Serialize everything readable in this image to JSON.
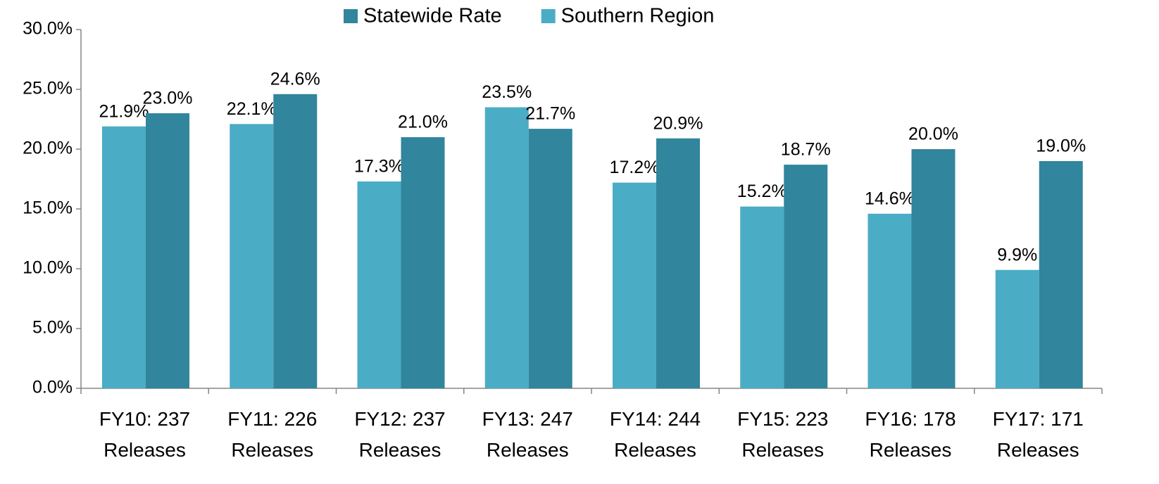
{
  "chart_data": {
    "type": "bar",
    "categories": [
      "FY10: 237 Releases",
      "FY11: 226 Releases",
      "FY12: 237 Releases",
      "FY13: 247 Releases",
      "FY14: 244 Releases",
      "FY15: 223 Releases",
      "FY16: 178 Releases",
      "FY17: 171 Releases"
    ],
    "series": [
      {
        "name": "Southern Region",
        "color": "#4bacc6",
        "values": [
          21.9,
          22.1,
          17.3,
          23.5,
          17.2,
          15.2,
          14.6,
          9.9
        ],
        "value_labels": [
          "21.9%",
          "22.1%",
          "17.3%",
          "23.5%",
          "17.2%",
          "15.2%",
          "14.6%",
          "9.9%"
        ]
      },
      {
        "name": "Statewide Rate",
        "color": "#31859c",
        "values": [
          23.0,
          24.6,
          21.0,
          21.7,
          20.9,
          18.7,
          20.0,
          19.0
        ],
        "value_labels": [
          "23.0%",
          "24.6%",
          "21.0%",
          "21.7%",
          "20.9%",
          "18.7%",
          "20.0%",
          "19.0%"
        ]
      }
    ],
    "ylim": [
      0,
      30
    ],
    "yticks": [
      {
        "value": 0,
        "label": "0.0%"
      },
      {
        "value": 5,
        "label": "5.0%"
      },
      {
        "value": 10,
        "label": "10.0%"
      },
      {
        "value": 15,
        "label": "15.0%"
      },
      {
        "value": 20,
        "label": "20.0%"
      },
      {
        "value": 25,
        "label": "25.0%"
      },
      {
        "value": 30,
        "label": "30.0%"
      }
    ],
    "grid": false,
    "legend": "top"
  }
}
